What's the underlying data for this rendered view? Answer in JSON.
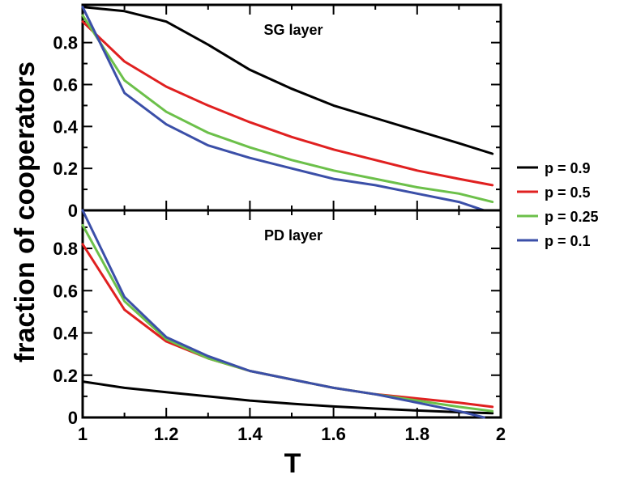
{
  "chart_data": {
    "type": "line",
    "xlabel": "T",
    "ylabel": "fraction of cooperators",
    "xlim": [
      1,
      2
    ],
    "x_ticks": [
      "1",
      "1.2",
      "1.4",
      "1.6",
      "1.8",
      "2"
    ],
    "grid": false,
    "legend_placement": "right",
    "legend": [
      {
        "name": "p = 0.9",
        "color": "#000000"
      },
      {
        "name": "p = 0.5",
        "color": "#e02020"
      },
      {
        "name": "p = 0.25",
        "color": "#6cc04a"
      },
      {
        "name": "p = 0.1",
        "color": "#3b4fa8"
      }
    ],
    "panels": [
      {
        "title": "SG layer",
        "ylim": [
          0,
          0.98
        ],
        "y_ticks": [
          "0",
          "0.2",
          "0.4",
          "0.6",
          "0.8"
        ],
        "series": [
          {
            "name": "p = 0.9",
            "color": "#000000",
            "x": [
              1.0,
              1.1,
              1.2,
              1.3,
              1.4,
              1.5,
              1.6,
              1.7,
              1.8,
              1.9,
              1.98
            ],
            "y": [
              0.97,
              0.95,
              0.9,
              0.79,
              0.67,
              0.58,
              0.5,
              0.44,
              0.38,
              0.32,
              0.27
            ]
          },
          {
            "name": "p = 0.5",
            "color": "#e02020",
            "x": [
              1.0,
              1.1,
              1.2,
              1.3,
              1.4,
              1.5,
              1.6,
              1.7,
              1.8,
              1.9,
              1.98
            ],
            "y": [
              0.9,
              0.71,
              0.59,
              0.5,
              0.42,
              0.35,
              0.29,
              0.24,
              0.19,
              0.15,
              0.12
            ]
          },
          {
            "name": "p = 0.25",
            "color": "#6cc04a",
            "x": [
              1.0,
              1.1,
              1.2,
              1.3,
              1.4,
              1.5,
              1.6,
              1.7,
              1.8,
              1.9,
              1.98
            ],
            "y": [
              0.93,
              0.62,
              0.47,
              0.37,
              0.3,
              0.24,
              0.19,
              0.15,
              0.11,
              0.08,
              0.04
            ]
          },
          {
            "name": "p = 0.1",
            "color": "#3b4fa8",
            "x": [
              1.0,
              1.1,
              1.2,
              1.3,
              1.4,
              1.5,
              1.6,
              1.7,
              1.8,
              1.9,
              1.96
            ],
            "y": [
              0.97,
              0.56,
              0.41,
              0.31,
              0.25,
              0.2,
              0.15,
              0.12,
              0.08,
              0.04,
              0.0
            ]
          }
        ]
      },
      {
        "title": "PD layer",
        "ylim": [
          0,
          0.98
        ],
        "y_ticks": [
          "0",
          "0.2",
          "0.4",
          "0.6",
          "0.8"
        ],
        "series": [
          {
            "name": "p = 0.9",
            "color": "#000000",
            "x": [
              1.0,
              1.1,
              1.2,
              1.3,
              1.4,
              1.5,
              1.6,
              1.7,
              1.8,
              1.9,
              1.98
            ],
            "y": [
              0.17,
              0.14,
              0.12,
              0.1,
              0.08,
              0.065,
              0.052,
              0.042,
              0.033,
              0.025,
              0.02
            ]
          },
          {
            "name": "p = 0.5",
            "color": "#e02020",
            "x": [
              1.0,
              1.1,
              1.2,
              1.3,
              1.4,
              1.5,
              1.6,
              1.7,
              1.8,
              1.9,
              1.98
            ],
            "y": [
              0.82,
              0.51,
              0.36,
              0.28,
              0.22,
              0.18,
              0.14,
              0.11,
              0.09,
              0.07,
              0.05
            ]
          },
          {
            "name": "p = 0.25",
            "color": "#6cc04a",
            "x": [
              1.0,
              1.1,
              1.2,
              1.3,
              1.4,
              1.5,
              1.6,
              1.7,
              1.8,
              1.9,
              1.98
            ],
            "y": [
              0.91,
              0.55,
              0.37,
              0.28,
              0.22,
              0.18,
              0.14,
              0.11,
              0.08,
              0.05,
              0.03
            ]
          },
          {
            "name": "p = 0.1",
            "color": "#3b4fa8",
            "x": [
              1.0,
              1.1,
              1.2,
              1.3,
              1.4,
              1.5,
              1.6,
              1.7,
              1.8,
              1.9,
              1.96
            ],
            "y": [
              0.98,
              0.57,
              0.38,
              0.29,
              0.22,
              0.18,
              0.14,
              0.11,
              0.07,
              0.03,
              0.0
            ]
          }
        ]
      }
    ]
  }
}
